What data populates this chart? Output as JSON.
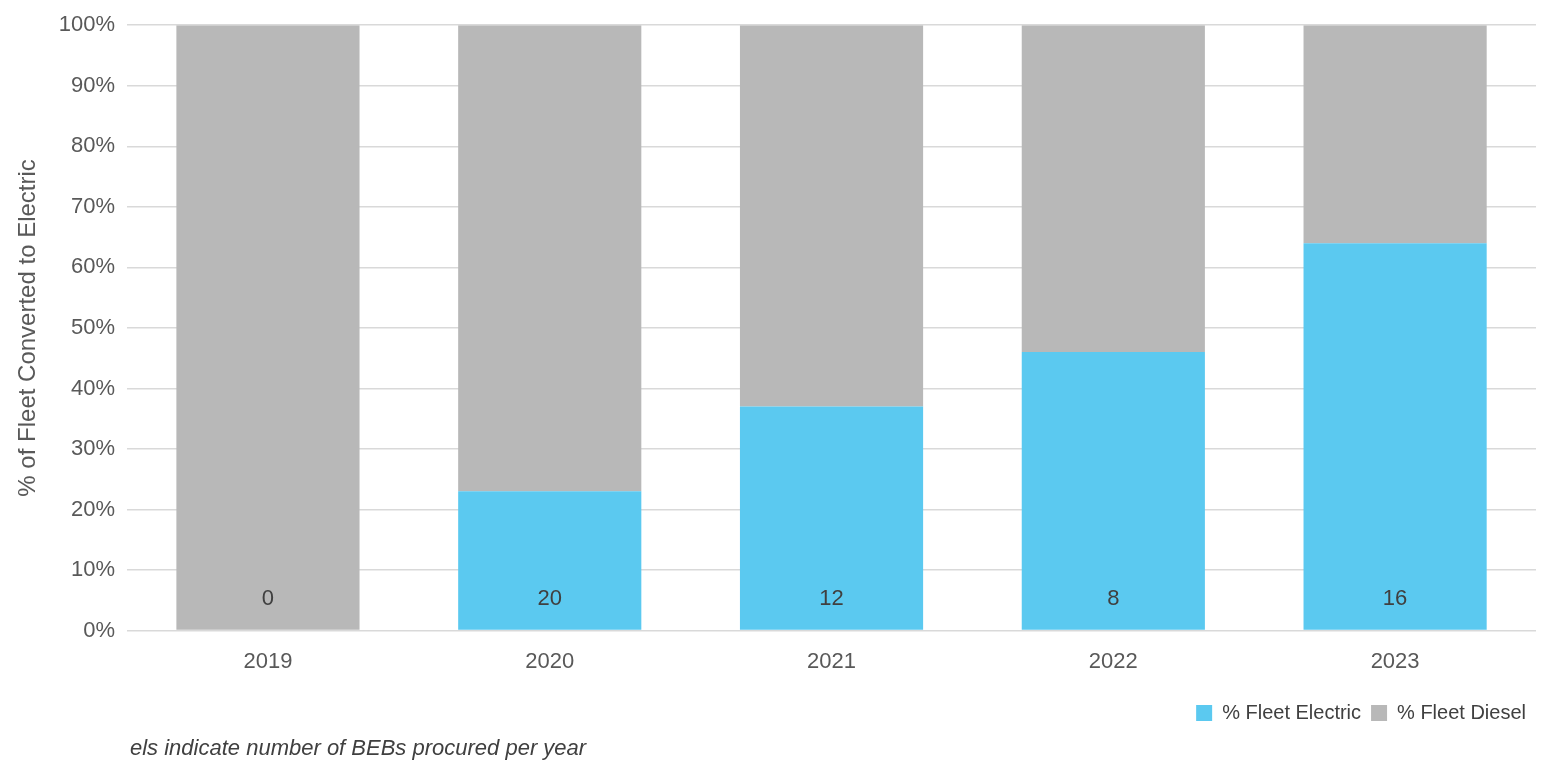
{
  "chart_data": {
    "type": "bar",
    "stacked": true,
    "ylabel": "% of Fleet Converted to Electric",
    "categories": [
      "2019",
      "2020",
      "2021",
      "2022",
      "2023"
    ],
    "series": [
      {
        "name": "% Fleet Electric",
        "color": "#5bc9f0",
        "values": [
          0,
          23,
          37,
          46,
          64
        ]
      },
      {
        "name": "% Fleet Diesel",
        "color": "#b8b8b8",
        "values": [
          100,
          77,
          63,
          54,
          36
        ]
      }
    ],
    "ylim": [
      0,
      100
    ],
    "yticks": [
      {
        "value": 0,
        "label": "0%"
      },
      {
        "value": 10,
        "label": "10%"
      },
      {
        "value": 20,
        "label": "20%"
      },
      {
        "value": 30,
        "label": "30%"
      },
      {
        "value": 40,
        "label": "40%"
      },
      {
        "value": 50,
        "label": "50%"
      },
      {
        "value": 60,
        "label": "60%"
      },
      {
        "value": 70,
        "label": "70%"
      },
      {
        "value": 80,
        "label": "80%"
      },
      {
        "value": 90,
        "label": "90%"
      },
      {
        "value": 100,
        "label": "100%"
      }
    ],
    "grid": "y",
    "legend": "bottom right",
    "annotations": [
      "0",
      "20",
      "12",
      "8",
      "16",
      "els indicate number of BEBs procured per year"
    ]
  }
}
